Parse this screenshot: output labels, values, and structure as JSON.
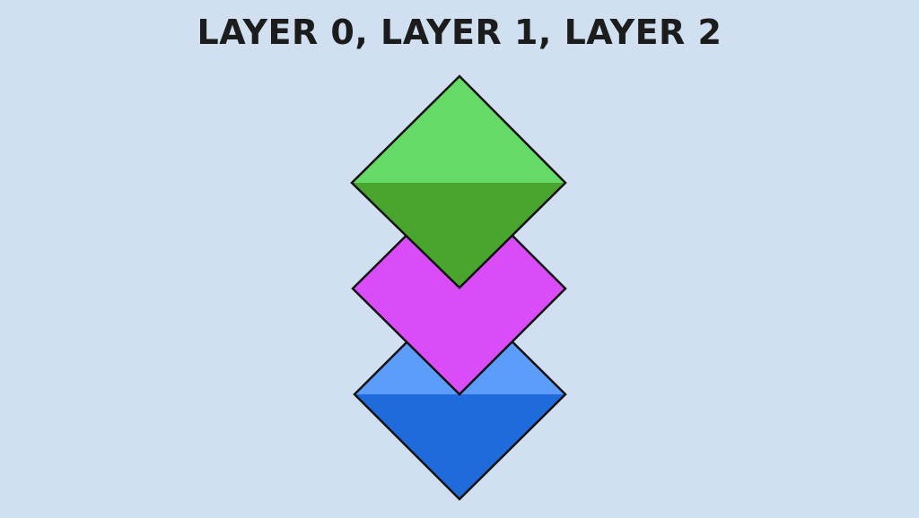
{
  "title": "LAYER 0, LAYER 1, LAYER 2",
  "colors": {
    "background": "#d0e0f0",
    "outline": "#111111",
    "layer_0": {
      "top": "#5c9cfa",
      "bottom": "#1f6bdc"
    },
    "layer_1": {
      "top": "#d94cf8",
      "bottom": "#d94cf8"
    },
    "layer_2": {
      "top": "#66da66",
      "bottom": "#49a52e"
    }
  },
  "layers": [
    {
      "id": "layer-0",
      "shape": "diamond"
    },
    {
      "id": "layer-1",
      "shape": "diamond"
    },
    {
      "id": "layer-2",
      "shape": "diamond"
    }
  ]
}
